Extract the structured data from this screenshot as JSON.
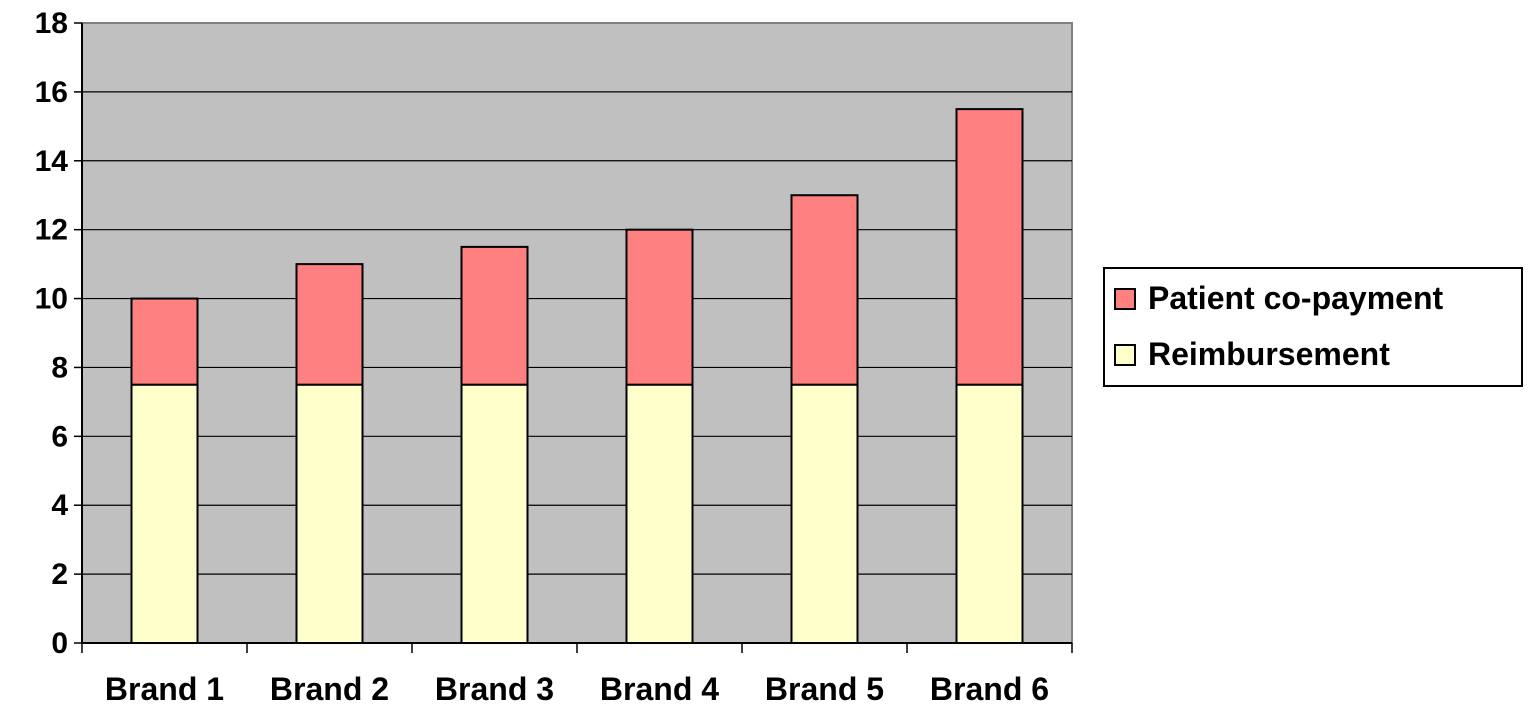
{
  "chart_data": {
    "type": "bar",
    "stacked": true,
    "categories": [
      "Brand 1",
      "Brand 2",
      "Brand 3",
      "Brand 4",
      "Brand 5",
      "Brand 6"
    ],
    "series": [
      {
        "name": "Reimbursement",
        "values": [
          7.5,
          7.5,
          7.5,
          7.5,
          7.5,
          7.5
        ],
        "color": "#ffffcc"
      },
      {
        "name": "Patient co-payment",
        "values": [
          2.5,
          3.5,
          4.0,
          4.5,
          5.5,
          8.0
        ],
        "color": "#ff8080"
      }
    ],
    "legend_order": [
      "Patient co-payment",
      "Reimbursement"
    ],
    "title": "",
    "xlabel": "",
    "ylabel": "",
    "ylim": [
      0,
      18
    ],
    "yticks": [
      "0",
      "2",
      "4",
      "6",
      "8",
      "10",
      "12",
      "14",
      "16",
      "18"
    ],
    "grid": true,
    "legend_position": "right",
    "plot_background": "#c0c0c0"
  }
}
